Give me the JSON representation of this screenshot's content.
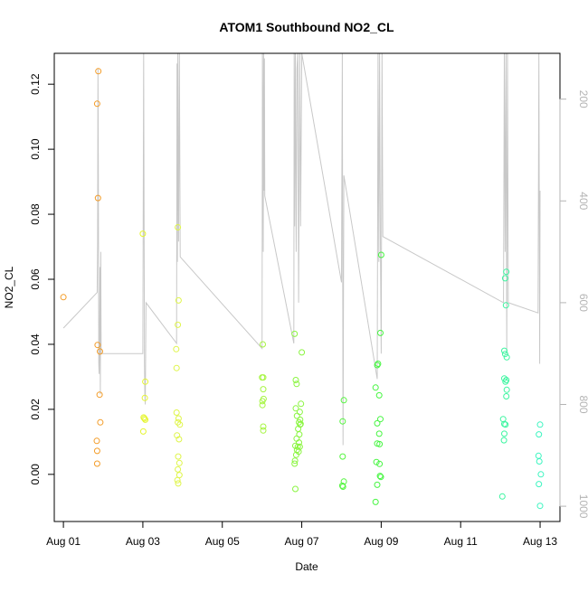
{
  "chart_data": {
    "type": "scatter",
    "title": "ATOM1 Southbound NO2_CL",
    "xlabel": "Date",
    "ylabel": "NO2_CL",
    "x_ticks": [
      {
        "day": 1,
        "label": "Aug 01"
      },
      {
        "day": 3,
        "label": "Aug 03"
      },
      {
        "day": 5,
        "label": "Aug 05"
      },
      {
        "day": 7,
        "label": "Aug 07"
      },
      {
        "day": 9,
        "label": "Aug 09"
      },
      {
        "day": 11,
        "label": "Aug 11"
      },
      {
        "day": 13,
        "label": "Aug 13"
      }
    ],
    "xlim": [
      0.77,
      13.5
    ],
    "ylim": [
      -0.0145,
      0.1295
    ],
    "y_ticks": [
      0.0,
      0.02,
      0.04,
      0.06,
      0.08,
      0.1,
      0.12
    ],
    "y_tick_labels": [
      "0.00",
      "0.02",
      "0.04",
      "0.06",
      "0.08",
      "0.10",
      "0.12"
    ],
    "y2_label": "",
    "y2lim": [
      1030,
      110
    ],
    "y2_ticks": [
      200,
      400,
      600,
      800,
      1000
    ],
    "y2_tick_labels": [
      "200",
      "400",
      "600",
      "800",
      "1000"
    ],
    "colors": {
      "aug01": "#f39c28",
      "aug03": "#e5f530",
      "aug04": "#dff54a",
      "aug06": "#a6f542",
      "aug07": "#8af540",
      "aug08": "#55f540",
      "aug09": "#45f540",
      "aug12": "#3cf5a0",
      "aug13": "#3cf5c0",
      "track": "#c8c8c8"
    },
    "series": [
      {
        "color_key": "aug01",
        "points": [
          [
            1.0,
            0.0545
          ],
          [
            1.88,
            0.124
          ],
          [
            1.85,
            0.114
          ],
          [
            1.87,
            0.085
          ],
          [
            1.86,
            0.0398
          ],
          [
            1.92,
            0.0378
          ],
          [
            1.91,
            0.0245
          ],
          [
            1.93,
            0.016
          ],
          [
            1.84,
            0.0103
          ],
          [
            1.85,
            0.0072
          ],
          [
            1.85,
            0.0033
          ]
        ]
      },
      {
        "color_key": "aug03",
        "points": [
          [
            3.0,
            0.074
          ],
          [
            3.06,
            0.0285
          ],
          [
            3.05,
            0.0235
          ],
          [
            3.02,
            0.0175
          ],
          [
            3.04,
            0.0172
          ],
          [
            3.06,
            0.0168
          ],
          [
            3.01,
            0.0132
          ]
        ]
      },
      {
        "color_key": "aug04",
        "points": [
          [
            3.88,
            0.076
          ],
          [
            3.9,
            0.0535
          ],
          [
            3.88,
            0.046
          ],
          [
            3.84,
            0.0385
          ],
          [
            3.85,
            0.0327
          ],
          [
            3.85,
            0.019
          ],
          [
            3.9,
            0.0172
          ],
          [
            3.88,
            0.016
          ],
          [
            3.93,
            0.0153
          ],
          [
            3.86,
            0.012
          ],
          [
            3.91,
            0.0108
          ],
          [
            3.89,
            0.0055
          ],
          [
            3.92,
            0.0035
          ],
          [
            3.88,
            0.0015
          ],
          [
            3.92,
            -0.0002
          ],
          [
            3.87,
            -0.0018
          ],
          [
            3.89,
            -0.0028
          ]
        ]
      },
      {
        "color_key": "aug06",
        "points": [
          [
            6.02,
            0.04
          ],
          [
            6.0,
            0.0298
          ],
          [
            6.03,
            0.0298
          ],
          [
            6.03,
            0.0262
          ],
          [
            6.04,
            0.0232
          ],
          [
            6.01,
            0.0225
          ],
          [
            6.01,
            0.0213
          ],
          [
            6.03,
            0.0147
          ],
          [
            6.03,
            0.0135
          ]
        ]
      },
      {
        "color_key": "aug07",
        "points": [
          [
            6.82,
            0.0432
          ],
          [
            7.0,
            0.0375
          ],
          [
            6.85,
            0.029
          ],
          [
            6.87,
            0.0278
          ],
          [
            6.98,
            0.0217
          ],
          [
            6.85,
            0.0203
          ],
          [
            6.95,
            0.0192
          ],
          [
            6.88,
            0.018
          ],
          [
            6.96,
            0.0168
          ],
          [
            6.93,
            0.016
          ],
          [
            6.97,
            0.0155
          ],
          [
            6.96,
            0.0153
          ],
          [
            6.91,
            0.014
          ],
          [
            6.94,
            0.0123
          ],
          [
            6.87,
            0.011
          ],
          [
            6.93,
            0.0098
          ],
          [
            6.84,
            0.0088
          ],
          [
            6.9,
            0.0085
          ],
          [
            6.95,
            0.0085
          ],
          [
            6.88,
            0.0075
          ],
          [
            6.92,
            0.007
          ],
          [
            6.86,
            0.006
          ],
          [
            6.83,
            0.0042
          ],
          [
            6.82,
            0.0033
          ],
          [
            6.84,
            -0.0045
          ]
        ]
      },
      {
        "color_key": "aug08",
        "points": [
          [
            8.06,
            0.0228
          ],
          [
            8.03,
            0.0163
          ],
          [
            8.03,
            0.0055
          ],
          [
            8.06,
            -0.0022
          ],
          [
            8.02,
            -0.0035
          ],
          [
            8.04,
            -0.0038
          ]
        ]
      },
      {
        "color_key": "aug09",
        "points": [
          [
            9.0,
            0.0675
          ],
          [
            8.98,
            0.0435
          ],
          [
            8.92,
            0.034
          ],
          [
            8.9,
            0.0336
          ],
          [
            8.86,
            0.0267
          ],
          [
            8.95,
            0.0243
          ],
          [
            8.98,
            0.017
          ],
          [
            8.9,
            0.0157
          ],
          [
            8.95,
            0.0125
          ],
          [
            8.9,
            0.0095
          ],
          [
            8.96,
            0.0093
          ],
          [
            8.88,
            0.0038
          ],
          [
            8.96,
            0.0032
          ],
          [
            8.97,
            -0.0005
          ],
          [
            8.99,
            -0.0008
          ],
          [
            8.9,
            -0.0032
          ],
          [
            8.86,
            -0.0085
          ]
        ]
      },
      {
        "color_key": "aug12",
        "points": [
          [
            12.15,
            0.0623
          ],
          [
            12.12,
            0.0603
          ],
          [
            12.14,
            0.052
          ],
          [
            12.1,
            0.038
          ],
          [
            12.12,
            0.037
          ],
          [
            12.16,
            0.036
          ],
          [
            12.1,
            0.0295
          ],
          [
            12.15,
            0.029
          ],
          [
            12.13,
            0.0285
          ],
          [
            12.16,
            0.026
          ],
          [
            12.15,
            0.024
          ],
          [
            12.07,
            0.017
          ],
          [
            12.1,
            0.0155
          ],
          [
            12.13,
            0.0153
          ],
          [
            12.1,
            0.0125
          ],
          [
            12.09,
            0.0105
          ],
          [
            12.05,
            -0.0068
          ]
        ]
      },
      {
        "color_key": "aug13",
        "points": [
          [
            13.0,
            0.0153
          ],
          [
            12.97,
            0.0123
          ],
          [
            12.96,
            0.0057
          ],
          [
            12.98,
            0.004
          ],
          [
            13.02,
            0.0
          ],
          [
            12.97,
            -0.003
          ],
          [
            13.0,
            -0.0097
          ]
        ]
      }
    ],
    "track_line": {
      "color_key": "track",
      "points": [
        [
          1.0,
          650
        ],
        [
          1.85,
          580
        ],
        [
          1.86,
          480
        ],
        [
          1.87,
          140
        ],
        [
          1.88,
          330
        ],
        [
          1.89,
          720
        ],
        [
          1.9,
          740
        ],
        [
          1.91,
          640
        ],
        [
          1.92,
          530
        ],
        [
          1.93,
          780
        ],
        [
          1.94,
          500
        ],
        [
          1.95,
          700
        ],
        [
          3.0,
          700
        ],
        [
          3.02,
          110
        ],
        [
          3.04,
          720
        ],
        [
          3.05,
          780
        ],
        [
          3.06,
          800
        ],
        [
          3.08,
          600
        ],
        [
          3.85,
          680
        ],
        [
          3.86,
          130
        ],
        [
          3.87,
          520
        ],
        [
          3.88,
          110
        ],
        [
          3.89,
          330
        ],
        [
          3.9,
          480
        ],
        [
          3.92,
          110
        ],
        [
          3.94,
          510
        ],
        [
          6.0,
          690
        ],
        [
          6.01,
          110
        ],
        [
          6.02,
          250
        ],
        [
          6.03,
          500
        ],
        [
          6.04,
          110
        ],
        [
          6.05,
          380
        ],
        [
          6.06,
          120
        ],
        [
          6.07,
          390
        ],
        [
          6.8,
          680
        ],
        [
          6.81,
          110
        ],
        [
          6.82,
          450
        ],
        [
          6.84,
          110
        ],
        [
          6.86,
          500
        ],
        [
          6.88,
          140
        ],
        [
          6.9,
          110
        ],
        [
          6.92,
          600
        ],
        [
          6.95,
          110
        ],
        [
          6.97,
          450
        ],
        [
          7.0,
          110
        ],
        [
          8.0,
          560
        ],
        [
          8.02,
          110
        ],
        [
          8.04,
          880
        ],
        [
          8.06,
          350
        ],
        [
          8.9,
          750
        ],
        [
          8.92,
          110
        ],
        [
          8.94,
          520
        ],
        [
          8.96,
          110
        ],
        [
          8.98,
          480
        ],
        [
          9.0,
          700
        ],
        [
          9.02,
          110
        ],
        [
          9.04,
          470
        ],
        [
          12.08,
          600
        ],
        [
          12.1,
          110
        ],
        [
          12.12,
          500
        ],
        [
          12.14,
          110
        ],
        [
          12.16,
          700
        ],
        [
          12.18,
          110
        ],
        [
          12.2,
          600
        ],
        [
          12.95,
          620
        ],
        [
          12.97,
          110
        ],
        [
          12.99,
          720
        ],
        [
          13.0,
          380
        ]
      ]
    }
  }
}
